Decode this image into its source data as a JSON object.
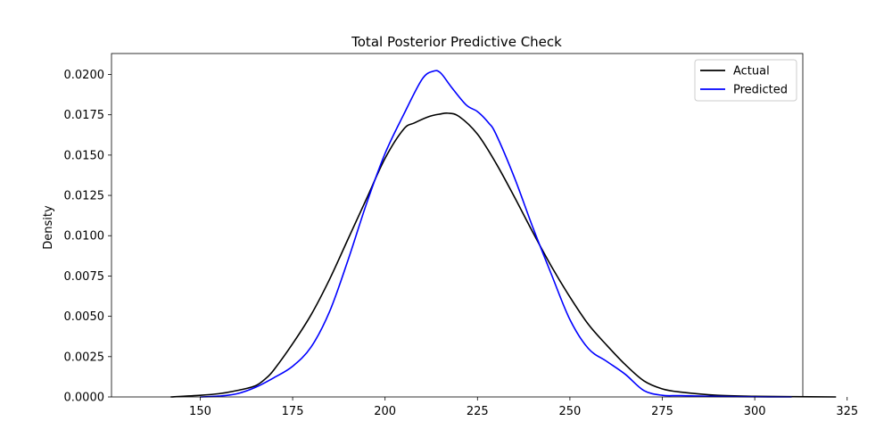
{
  "chart_data": {
    "type": "line",
    "title": "Total Posterior Predictive Check",
    "xlabel": "",
    "ylabel": "Density",
    "xlim": [
      126,
      313
    ],
    "ylim": [
      0,
      0.0213
    ],
    "x_ticks": [
      150,
      175,
      200,
      225,
      250,
      275,
      300,
      325
    ],
    "x_tick_labels": [
      "150",
      "175",
      "200",
      "225",
      "250",
      "275",
      "300",
      "325"
    ],
    "y_ticks": [
      0,
      0.0025,
      0.005,
      0.0075,
      0.01,
      0.0125,
      0.015,
      0.0175,
      0.02
    ],
    "y_tick_labels": [
      "0.0000",
      "0.0025",
      "0.0050",
      "0.0075",
      "0.0100",
      "0.0125",
      "0.0150",
      "0.0175",
      "0.0200"
    ],
    "grid": false,
    "legend": {
      "position": "top-right"
    },
    "series": [
      {
        "name": "Actual",
        "color": "#000000",
        "x": [
          142,
          150,
          155,
          160,
          165,
          168,
          170,
          175,
          180,
          185,
          190,
          195,
          200,
          205,
          208,
          212,
          215,
          217,
          220,
          225,
          230,
          235,
          240,
          245,
          250,
          255,
          260,
          265,
          270,
          275,
          280,
          290,
          300,
          310,
          322
        ],
        "y": [
          0.0,
          0.0001,
          0.0002,
          0.0004,
          0.0007,
          0.0012,
          0.0017,
          0.0033,
          0.0051,
          0.0073,
          0.0098,
          0.0123,
          0.0148,
          0.0166,
          0.017,
          0.0174,
          0.01755,
          0.0176,
          0.0174,
          0.0163,
          0.0145,
          0.0124,
          0.0102,
          0.0081,
          0.0062,
          0.0045,
          0.0032,
          0.002,
          0.001,
          0.0005,
          0.0003,
          0.0001,
          4e-05,
          2e-05,
          0.0
        ]
      },
      {
        "name": "Predicted",
        "color": "#0000ff",
        "x": [
          150,
          155,
          160,
          165,
          170,
          175,
          180,
          185,
          190,
          195,
          200,
          205,
          210,
          213,
          215,
          218,
          222,
          225,
          228,
          230,
          235,
          240,
          245,
          250,
          255,
          260,
          265,
          270,
          275,
          280,
          290,
          300,
          310
        ],
        "y": [
          0.0,
          5e-05,
          0.0002,
          0.0006,
          0.0012,
          0.0019,
          0.0031,
          0.0053,
          0.0085,
          0.012,
          0.0151,
          0.0175,
          0.0197,
          0.0202,
          0.0201,
          0.0192,
          0.0181,
          0.0177,
          0.017,
          0.0163,
          0.0136,
          0.0105,
          0.0076,
          0.0048,
          0.003,
          0.0022,
          0.0014,
          0.0004,
          0.0001,
          8e-05,
          3e-05,
          1e-05,
          0.0
        ]
      }
    ]
  }
}
